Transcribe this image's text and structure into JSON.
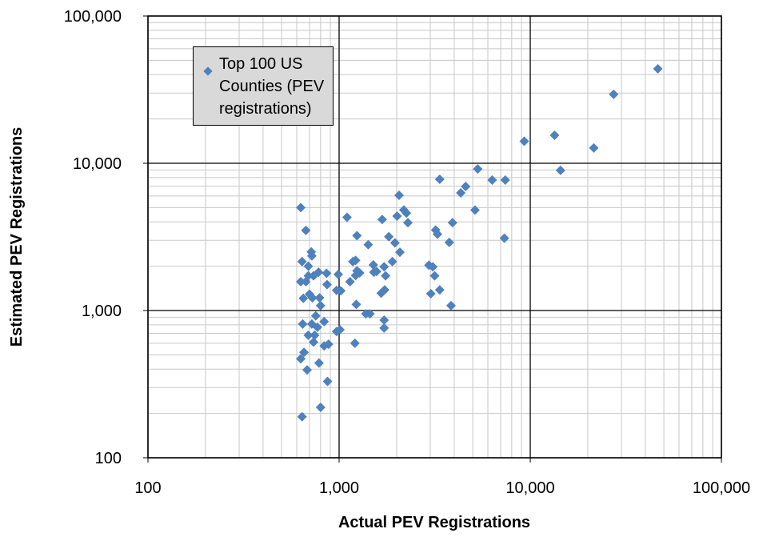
{
  "chart_data": {
    "type": "scatter",
    "x_label": "Actual PEV Registrations",
    "y_label": "Estimated PEV Registrations",
    "x_scale": "log",
    "y_scale": "log",
    "xlim": [
      100,
      100000
    ],
    "ylim": [
      100,
      100000
    ],
    "xticks": [
      100,
      {
        "value": 1000,
        "label": "1,000"
      },
      {
        "value": 10000,
        "label": "10,000"
      },
      {
        "value": 100000,
        "label": "100,000"
      }
    ],
    "yticks": [
      100,
      {
        "value": 1000,
        "label": "1,000"
      },
      {
        "value": 10000,
        "label": "10,000"
      },
      {
        "value": 100000,
        "label": "100,000"
      }
    ],
    "grid": true,
    "minor_grid": true,
    "legend": "upper left",
    "series": [
      {
        "name": "Top 100 US Counties (PEV registrations)",
        "color": "#4f81bd",
        "x": [
          630,
          670,
          715,
          720,
          640,
          690,
          630,
          670,
          690,
          735,
          780,
          650,
          700,
          725,
          790,
          800,
          755,
          645,
          720,
          770,
          835,
          745,
          690,
          735,
          835,
          880,
          655,
          630,
          680,
          785,
          870,
          640,
          800,
          860,
          865,
          970,
          1020,
          990,
          1010,
          970,
          1100,
          1140,
          1180,
          1220,
          1240,
          1220,
          1240,
          1280,
          1230,
          1210,
          1420,
          1380,
          1450,
          1510,
          1520,
          1570,
          1680,
          1660,
          1730,
          1720,
          1750,
          1720,
          1720,
          1820,
          1900,
          1960,
          2010,
          2060,
          2080,
          2180,
          2250,
          2290,
          2950,
          3090,
          3020,
          3160,
          3200,
          3270,
          3360,
          3360,
          3770,
          3850,
          3920,
          4330,
          4590,
          5140,
          5310,
          6320,
          7320,
          7400,
          9300,
          13400,
          14400,
          21500,
          27300,
          46500
        ],
        "values": [
          5000,
          3500,
          2500,
          2350,
          2150,
          2000,
          1570,
          1570,
          1720,
          1720,
          1820,
          1210,
          1290,
          1220,
          1220,
          1080,
          920,
          810,
          810,
          770,
          840,
          680,
          680,
          610,
          575,
          590,
          520,
          470,
          395,
          440,
          330,
          190,
          220,
          1790,
          1500,
          1370,
          1360,
          1760,
          740,
          720,
          4300,
          1570,
          2150,
          2190,
          3220,
          1730,
          1860,
          1800,
          1100,
          600,
          2800,
          950,
          950,
          2040,
          1820,
          1840,
          4150,
          1310,
          1380,
          1980,
          1720,
          860,
          760,
          3170,
          2150,
          2880,
          4380,
          6060,
          2490,
          4820,
          4590,
          3950,
          2030,
          1980,
          1300,
          1720,
          3520,
          3300,
          1380,
          7790,
          2900,
          1080,
          3950,
          6290,
          6960,
          4810,
          9150,
          7690,
          3100,
          7690,
          14100,
          15500,
          8950,
          12700,
          29400,
          43800
        ]
      }
    ]
  }
}
